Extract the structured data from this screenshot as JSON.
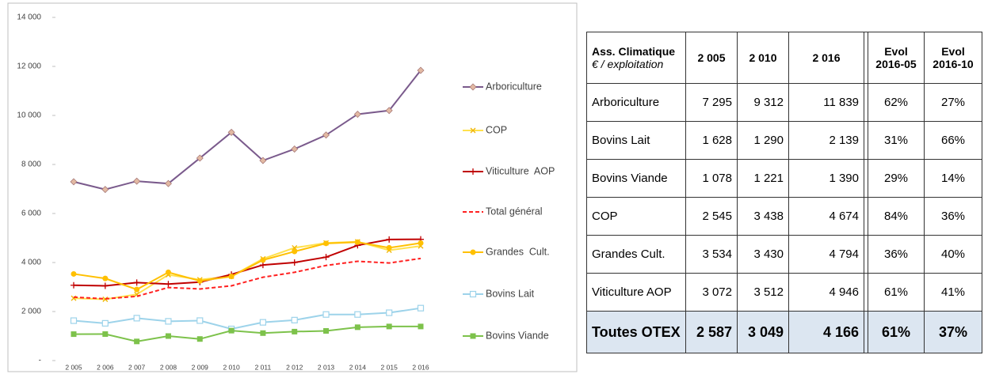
{
  "chart_data": {
    "type": "line",
    "categories": [
      "2 005",
      "2 006",
      "2 007",
      "2 008",
      "2 009",
      "2 010",
      "2 011",
      "2 012",
      "2 013",
      "2 014",
      "2 015",
      "2 016"
    ],
    "ylim": [
      0,
      14000
    ],
    "yticks": [
      {
        "value": 0,
        "label": "-"
      },
      {
        "value": 2000,
        "label": "2 000"
      },
      {
        "value": 4000,
        "label": "4 000"
      },
      {
        "value": 6000,
        "label": "6 000"
      },
      {
        "value": 8000,
        "label": "8 000"
      },
      {
        "value": 10000,
        "label": "10 000"
      },
      {
        "value": 12000,
        "label": "12 000"
      },
      {
        "value": 14000,
        "label": "14 000"
      }
    ],
    "grid": false,
    "legend": "right",
    "series": [
      {
        "name": "Arboriculture",
        "color": "#7a5a8c",
        "marker": "diamond",
        "marker_color": "#e2b9a3",
        "values": [
          7295,
          6980,
          7320,
          7220,
          8260,
          9312,
          8160,
          8630,
          9200,
          10050,
          10200,
          11839
        ]
      },
      {
        "name": "COP",
        "color": "#ffe14d",
        "marker": "cross",
        "marker_color": "#f0b400",
        "values": [
          2545,
          2500,
          2700,
          3500,
          3300,
          3438,
          4150,
          4600,
          4800,
          4850,
          4500,
          4674
        ]
      },
      {
        "name": "Viticulture  AOP",
        "color": "#c00000",
        "marker": "plus",
        "marker_color": "#c00000",
        "values": [
          3072,
          3050,
          3180,
          3120,
          3200,
          3512,
          3900,
          4000,
          4220,
          4700,
          4940,
          4946
        ]
      },
      {
        "name": "Total général",
        "color": "#ff2020",
        "marker": "none",
        "marker_color": "#ff2020",
        "line_style": "dashed",
        "values": [
          2587,
          2520,
          2620,
          2980,
          2920,
          3049,
          3400,
          3600,
          3880,
          4050,
          3980,
          4166
        ]
      },
      {
        "name": "Grandes  Cult.",
        "color": "#ffc000",
        "marker": "circle",
        "marker_color": "#ffc000",
        "values": [
          3534,
          3350,
          2900,
          3600,
          3250,
          3430,
          4100,
          4450,
          4780,
          4830,
          4600,
          4794
        ]
      },
      {
        "name": "Bovins Lait",
        "color": "#9dd3ea",
        "marker": "open-square",
        "marker_color": "#9dd3ea",
        "values": [
          1628,
          1520,
          1730,
          1600,
          1630,
          1290,
          1560,
          1650,
          1880,
          1880,
          1950,
          2139
        ]
      },
      {
        "name": "Bovins Viande",
        "color": "#7dc24b",
        "marker": "square",
        "marker_color": "#7dc24b",
        "values": [
          1078,
          1080,
          780,
          1000,
          880,
          1221,
          1120,
          1180,
          1210,
          1360,
          1390,
          1390
        ]
      }
    ]
  },
  "table": {
    "header": {
      "label": "Ass. Climatique",
      "unit": "€ / exploitation",
      "columns": [
        "2 005",
        "2 010",
        "2 016",
        "Evol 2016-05",
        "Evol 2016-10"
      ]
    },
    "rows": [
      [
        "Arboriculture",
        "7 295",
        "9 312",
        "11 839",
        "62%",
        "27%"
      ],
      [
        "Bovins Lait",
        "1 628",
        "1 290",
        "2 139",
        "31%",
        "66%"
      ],
      [
        "Bovins Viande",
        "1 078",
        "1 221",
        "1 390",
        "29%",
        "14%"
      ],
      [
        "COP",
        "2 545",
        "3 438",
        "4 674",
        "84%",
        "36%"
      ],
      [
        "Grandes  Cult.",
        "3 534",
        "3 430",
        "4 794",
        "36%",
        "40%"
      ],
      [
        "Viticulture AOP",
        "3 072",
        "3 512",
        "4 946",
        "61%",
        "41%"
      ]
    ],
    "total": [
      "Toutes OTEX",
      "2 587",
      "3 049",
      "4 166",
      "61%",
      "37%"
    ]
  }
}
